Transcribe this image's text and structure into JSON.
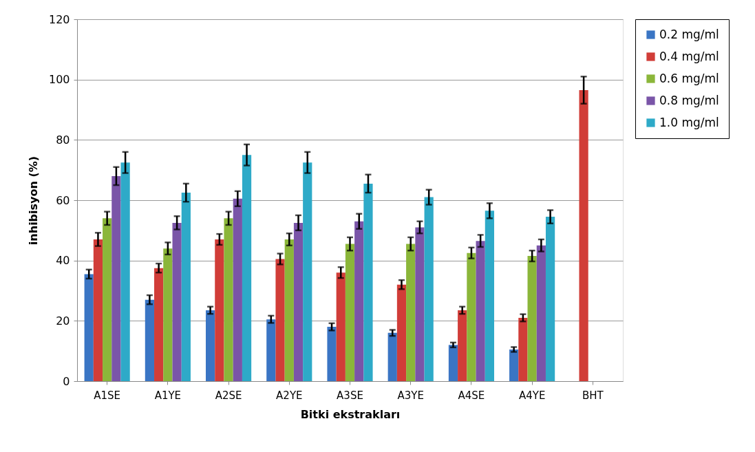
{
  "chart_data": {
    "type": "bar",
    "xlabel": "Bitki ekstrakları",
    "ylabel": "inhibisyon (%)",
    "categories": [
      "A1SE",
      "A1YE",
      "A2SE",
      "A2YE",
      "A3SE",
      "A3YE",
      "A4SE",
      "A4YE",
      "BHT"
    ],
    "series": [
      {
        "name": "0.2 mg/ml",
        "color": "#3a75c4",
        "values": [
          35.5,
          27,
          23.5,
          20.5,
          18,
          16,
          12,
          10.5,
          null
        ],
        "errors": [
          1.5,
          1.5,
          1.2,
          1.2,
          1.2,
          1,
          0.8,
          0.8,
          null
        ]
      },
      {
        "name": "0.4 mg/ml",
        "color": "#d13d38",
        "values": [
          47,
          37.5,
          47,
          40.5,
          36,
          32,
          23.5,
          21,
          96.5
        ],
        "errors": [
          2.2,
          1.5,
          1.8,
          1.8,
          1.8,
          1.5,
          1.2,
          1.2,
          4.5
        ]
      },
      {
        "name": "0.6 mg/ml",
        "color": "#8bb63a",
        "values": [
          54,
          44,
          54,
          47,
          45.5,
          45.5,
          42.5,
          41.5,
          null
        ],
        "errors": [
          2.2,
          2,
          2.2,
          2,
          2.2,
          2.2,
          1.8,
          1.8,
          null
        ]
      },
      {
        "name": "0.8 mg/ml",
        "color": "#7a55a8",
        "values": [
          68,
          52.5,
          60.5,
          52.5,
          53,
          51,
          46.5,
          45,
          null
        ],
        "errors": [
          3,
          2.2,
          2.5,
          2.5,
          2.5,
          2,
          2,
          2,
          null
        ]
      },
      {
        "name": "1.0 mg/ml",
        "color": "#2eaac8",
        "values": [
          72.5,
          62.5,
          75,
          72.5,
          65.5,
          61,
          56.5,
          54.5,
          null
        ],
        "errors": [
          3.5,
          3,
          3.5,
          3.5,
          3,
          2.5,
          2.5,
          2.2,
          null
        ]
      }
    ],
    "ylim": [
      0,
      120
    ],
    "yticks": [
      0,
      20,
      40,
      60,
      80,
      100,
      120
    ],
    "grid": "y",
    "legend": "right"
  }
}
